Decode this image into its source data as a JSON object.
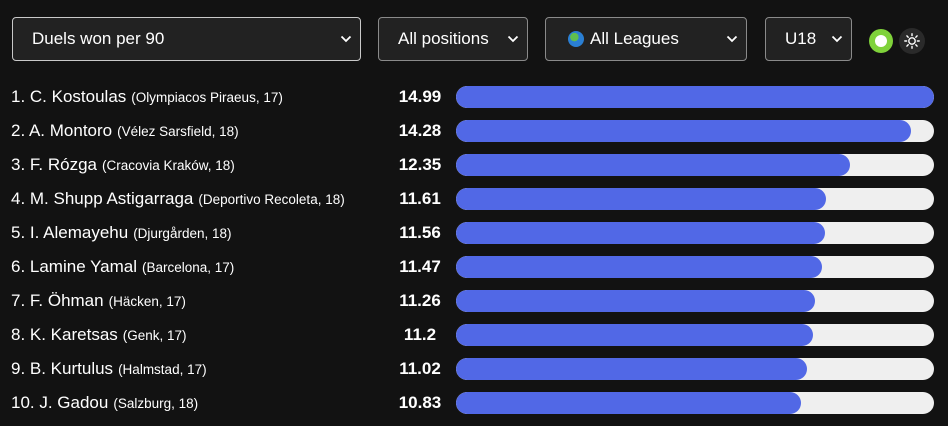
{
  "filters": {
    "metric": "Duels won per 90",
    "position": "All positions",
    "league": "All Leagues",
    "age": "U18"
  },
  "colors": {
    "bar_fill": "#5168e6",
    "bar_track": "#efefef",
    "toggle_on": "#7fd23a",
    "background": "#121212"
  },
  "chart_data": {
    "type": "bar",
    "title": "",
    "max_value": 14.99,
    "rows": [
      {
        "rank_name": "1. C. Kostoulas",
        "club": "(Olympiacos Piraeus, 17)",
        "value_label": "14.99",
        "value": 14.99
      },
      {
        "rank_name": "2. A. Montoro",
        "club": "(Vélez Sarsfield, 18)",
        "value_label": "14.28",
        "value": 14.28
      },
      {
        "rank_name": "3. F. Rózga",
        "club": "(Cracovia Kraków, 18)",
        "value_label": "12.35",
        "value": 12.35
      },
      {
        "rank_name": "4. M. Shupp Astigarraga",
        "club": "(Deportivo Recoleta, 18)",
        "value_label": "11.61",
        "value": 11.61
      },
      {
        "rank_name": "5. I. Alemayehu",
        "club": "(Djurgården, 18)",
        "value_label": "11.56",
        "value": 11.56
      },
      {
        "rank_name": "6. Lamine Yamal",
        "club": "(Barcelona, 17)",
        "value_label": "11.47",
        "value": 11.47
      },
      {
        "rank_name": "7. F. Öhman",
        "club": "(Häcken, 17)",
        "value_label": "11.26",
        "value": 11.26
      },
      {
        "rank_name": "8. K. Karetsas",
        "club": "(Genk, 17)",
        "value_label": "11.2",
        "value": 11.2
      },
      {
        "rank_name": "9. B. Kurtulus",
        "club": "(Halmstad, 17)",
        "value_label": "11.02",
        "value": 11.02
      },
      {
        "rank_name": "10. J. Gadou",
        "club": "(Salzburg, 18)",
        "value_label": "10.83",
        "value": 10.83
      }
    ]
  }
}
